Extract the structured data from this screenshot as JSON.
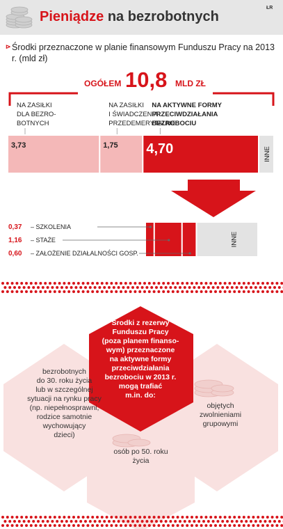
{
  "header": {
    "title_red": "Pieniądze",
    "title_dark": "na bezrobotnych",
    "source": "ŁR",
    "icon": "coins-icon"
  },
  "chart_data": {
    "type": "bar",
    "caption": "Środki przeznaczone w planie finansowym Funduszu Pracy na 2013 r. (mld zł)",
    "total": {
      "label": "OGÓŁEM",
      "value": "10,8",
      "value_num": 10.8,
      "unit": "MLD ZŁ"
    },
    "segments": [
      {
        "label_lines": [
          "NA ZASIŁKI",
          "DLA BEZRO-",
          "BOTNYCH"
        ],
        "value": 3.73,
        "display": "3,73",
        "color": "#f4b8b8",
        "bold": false
      },
      {
        "label_lines": [
          "NA ZASIŁKI",
          "I ŚWIADCZENIA",
          "PRZEDEMERYTALNE"
        ],
        "value": 1.75,
        "display": "1,75",
        "color": "#f4b8b8",
        "bold": false
      },
      {
        "label_lines": [
          "NA AKTYWNE FORMY",
          "PRZECIWDZIAŁANIA",
          "BEZROBOCIU"
        ],
        "value": 4.7,
        "display": "4,70",
        "color": "#d7141a",
        "bold": true
      },
      {
        "label_lines": [],
        "value": 0.62,
        "display": "INNE",
        "color": "#e3e3e3",
        "bold": false,
        "is_other": true
      }
    ],
    "breakdown": [
      {
        "value": 0.37,
        "display": "0,37",
        "label": "– SZKOLENIA"
      },
      {
        "value": 1.16,
        "display": "1,16",
        "label": "– STAŻE"
      },
      {
        "value": 0.6,
        "display": "0,60",
        "label": "– ZAŁOŻENIE DZIAŁALNOŚCI GOSP."
      },
      {
        "value": 2.57,
        "display": "INNE",
        "label": "",
        "is_other": true
      }
    ],
    "colors": {
      "accent": "#d7141a",
      "light": "#f4b8b8",
      "grey": "#e3e3e3"
    }
  },
  "hexagons": {
    "center": [
      "Środki z rezerwy",
      "Funduszu Pracy",
      "(poza planem finanso-",
      "wym) przeznaczone",
      "na aktywne formy",
      "przeciwdziałania",
      "bezrobociu w 2013 r.",
      "mogą trafiać",
      "m.in. do:"
    ],
    "left": [
      "bezrobotnych",
      "do 30. roku życia",
      "lub w szczególnej",
      "sytuacji na rynku pracy",
      "(np. niepełnosprawni,",
      "rodzice samotnie",
      "wychowujący",
      "dzieci)"
    ],
    "right": [
      "objętych",
      "zwolnieniami",
      "grupowymi"
    ],
    "bottom": [
      "osób po 50. roku",
      "życia"
    ]
  }
}
